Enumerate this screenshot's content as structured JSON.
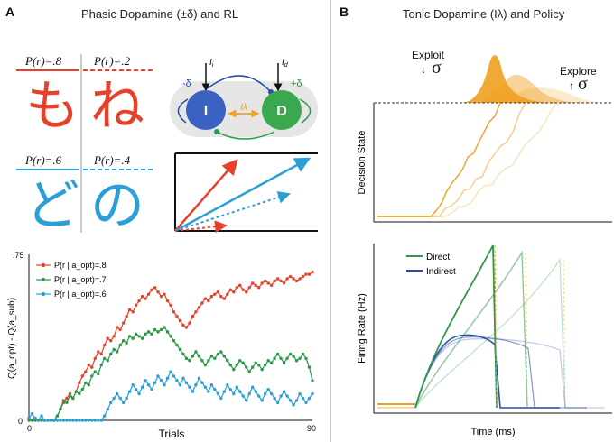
{
  "panel_a": {
    "letter": "A",
    "title": "Phasic Dopamine (±δ) and RL",
    "cues": [
      {
        "prob": "P(r)=.8",
        "char": "も",
        "color": "#e8402a"
      },
      {
        "prob": "P(r)=.2",
        "char": "ね",
        "color": "#e8402a"
      },
      {
        "prob": "P(r)=.6",
        "char": "ど",
        "color": "#2a9fd8"
      },
      {
        "prob": "P(r)=.4",
        "char": "の",
        "color": "#2a9fd8"
      }
    ],
    "circuit": {
      "i_label": "I",
      "d_label": "D",
      "input_i": "I",
      "input_d": "I",
      "i_sub": "i",
      "d_sub": "d",
      "lambda": "Iλ",
      "delta_i": "-δ",
      "delta_d": "+δ"
    },
    "legend": [
      "P(r | a_opt)=.8",
      "P(r | a_opt)=.7",
      "P(r | a_opt)=.6"
    ],
    "colors": {
      "red": "#e8402a",
      "green": "#2a9a48",
      "blue": "#2a9fd8",
      "orange": "#f0a020",
      "navy": "#2a4fa8"
    }
  },
  "panel_b": {
    "letter": "B",
    "title": "Tonic Dopamine (Iλ) and Policy",
    "exploit": "Exploit",
    "explore": "Explore",
    "sigma": "σ",
    "decision_ylabel": "Decision State",
    "firing_ylabel": "Firing Rate (Hz)",
    "xlabel": "Time (ms)",
    "legend": [
      "Direct",
      "Indirect"
    ]
  },
  "chart_data": [
    {
      "type": "line",
      "title": "",
      "xlabel": "Trials",
      "ylabel": "Q(a_opt) - Q(a_sub)",
      "xlim": [
        0,
        90
      ],
      "ylim": [
        0,
        0.75
      ],
      "xticks": [
        "0",
        "90"
      ],
      "yticks": [
        "0",
        ".75"
      ],
      "series": [
        {
          "name": "P(r | a_opt)=.8",
          "color": "#e8402a",
          "values": [
            0.01,
            0.0,
            0.01,
            0.0,
            0.0,
            0.0,
            0.0,
            0.0,
            0.0,
            0.02,
            0.05,
            0.08,
            0.1,
            0.12,
            0.1,
            0.13,
            0.17,
            0.2,
            0.22,
            0.25,
            0.24,
            0.28,
            0.31,
            0.3,
            0.34,
            0.37,
            0.36,
            0.38,
            0.42,
            0.41,
            0.44,
            0.47,
            0.5,
            0.49,
            0.52,
            0.54,
            0.56,
            0.55,
            0.57,
            0.59,
            0.6,
            0.58,
            0.56,
            0.57,
            0.54,
            0.52,
            0.49,
            0.47,
            0.45,
            0.43,
            0.42,
            0.44,
            0.47,
            0.49,
            0.51,
            0.53,
            0.55,
            0.54,
            0.56,
            0.57,
            0.58,
            0.56,
            0.55,
            0.57,
            0.59,
            0.58,
            0.6,
            0.61,
            0.59,
            0.58,
            0.6,
            0.62,
            0.61,
            0.6,
            0.62,
            0.63,
            0.62,
            0.61,
            0.63,
            0.64,
            0.63,
            0.62,
            0.64,
            0.65,
            0.64,
            0.63,
            0.64,
            0.65,
            0.66,
            0.66,
            0.67
          ]
        },
        {
          "name": "P(r | a_opt)=.7",
          "color": "#2a9a48",
          "values": [
            0.0,
            0.0,
            0.0,
            0.0,
            0.0,
            0.0,
            0.0,
            0.0,
            0.0,
            0.02,
            0.05,
            0.09,
            0.08,
            0.11,
            0.1,
            0.13,
            0.12,
            0.14,
            0.17,
            0.16,
            0.2,
            0.22,
            0.21,
            0.25,
            0.28,
            0.27,
            0.3,
            0.32,
            0.31,
            0.34,
            0.36,
            0.35,
            0.38,
            0.37,
            0.39,
            0.38,
            0.37,
            0.39,
            0.4,
            0.39,
            0.41,
            0.4,
            0.41,
            0.42,
            0.4,
            0.38,
            0.36,
            0.34,
            0.32,
            0.3,
            0.28,
            0.27,
            0.29,
            0.31,
            0.29,
            0.27,
            0.25,
            0.27,
            0.29,
            0.28,
            0.3,
            0.31,
            0.29,
            0.27,
            0.25,
            0.23,
            0.25,
            0.27,
            0.26,
            0.24,
            0.22,
            0.24,
            0.26,
            0.25,
            0.23,
            0.25,
            0.27,
            0.26,
            0.28,
            0.3,
            0.28,
            0.26,
            0.28,
            0.3,
            0.29,
            0.27,
            0.28,
            0.3,
            0.28,
            0.24,
            0.18
          ]
        },
        {
          "name": "P(r | a_opt)=.6",
          "color": "#2a9fd8",
          "values": [
            0.01,
            0.03,
            0.01,
            0.0,
            0.02,
            0.0,
            0.0,
            0.0,
            0.0,
            0.0,
            0.0,
            0.0,
            0.0,
            0.0,
            0.0,
            0.0,
            0.0,
            0.0,
            0.0,
            0.0,
            0.0,
            0.0,
            0.0,
            0.0,
            0.02,
            0.05,
            0.08,
            0.1,
            0.12,
            0.1,
            0.08,
            0.1,
            0.13,
            0.16,
            0.14,
            0.12,
            0.15,
            0.18,
            0.16,
            0.14,
            0.17,
            0.2,
            0.18,
            0.16,
            0.19,
            0.22,
            0.2,
            0.18,
            0.16,
            0.19,
            0.17,
            0.15,
            0.13,
            0.16,
            0.19,
            0.17,
            0.15,
            0.13,
            0.16,
            0.14,
            0.12,
            0.1,
            0.13,
            0.16,
            0.14,
            0.12,
            0.15,
            0.13,
            0.11,
            0.09,
            0.12,
            0.15,
            0.13,
            0.11,
            0.09,
            0.12,
            0.14,
            0.12,
            0.1,
            0.08,
            0.11,
            0.13,
            0.11,
            0.09,
            0.07,
            0.09,
            0.12,
            0.1,
            0.08,
            0.1,
            0.12
          ]
        }
      ]
    },
    {
      "type": "line",
      "title": "Decision State",
      "xlabel": "",
      "ylabel": "Decision State",
      "series": [
        {
          "name": "exploit",
          "values": [
            0,
            0,
            0,
            0,
            0,
            0,
            0,
            0,
            0,
            0,
            0,
            0.05,
            0.12,
            0.2,
            0.28,
            0.35,
            0.42,
            0.5,
            0.58,
            0.66,
            0.74,
            0.82,
            0.9,
            1.0
          ]
        },
        {
          "name": "mid",
          "values": [
            0,
            0,
            0,
            0,
            0,
            0,
            0,
            0,
            0,
            0,
            0,
            0.04,
            0.09,
            0.14,
            0.2,
            0.26,
            0.32,
            0.38,
            0.45,
            0.52,
            0.6,
            0.68,
            0.78,
            0.88,
            1.0
          ]
        },
        {
          "name": "explore",
          "values": [
            0,
            0,
            0,
            0,
            0,
            0,
            0,
            0,
            0,
            0,
            0,
            0.03,
            0.07,
            0.11,
            0.15,
            0.2,
            0.25,
            0.3,
            0.36,
            0.42,
            0.48,
            0.55,
            0.62,
            0.7,
            0.78,
            0.86,
            0.94,
            1.0
          ]
        }
      ]
    },
    {
      "type": "line",
      "title": "Firing Rate (Hz)",
      "xlabel": "Time (ms)",
      "ylabel": "Firing Rate (Hz)",
      "series": [
        {
          "name": "Direct",
          "color": "#2a9a48"
        },
        {
          "name": "Indirect",
          "color": "#2a4fa8"
        }
      ]
    }
  ]
}
